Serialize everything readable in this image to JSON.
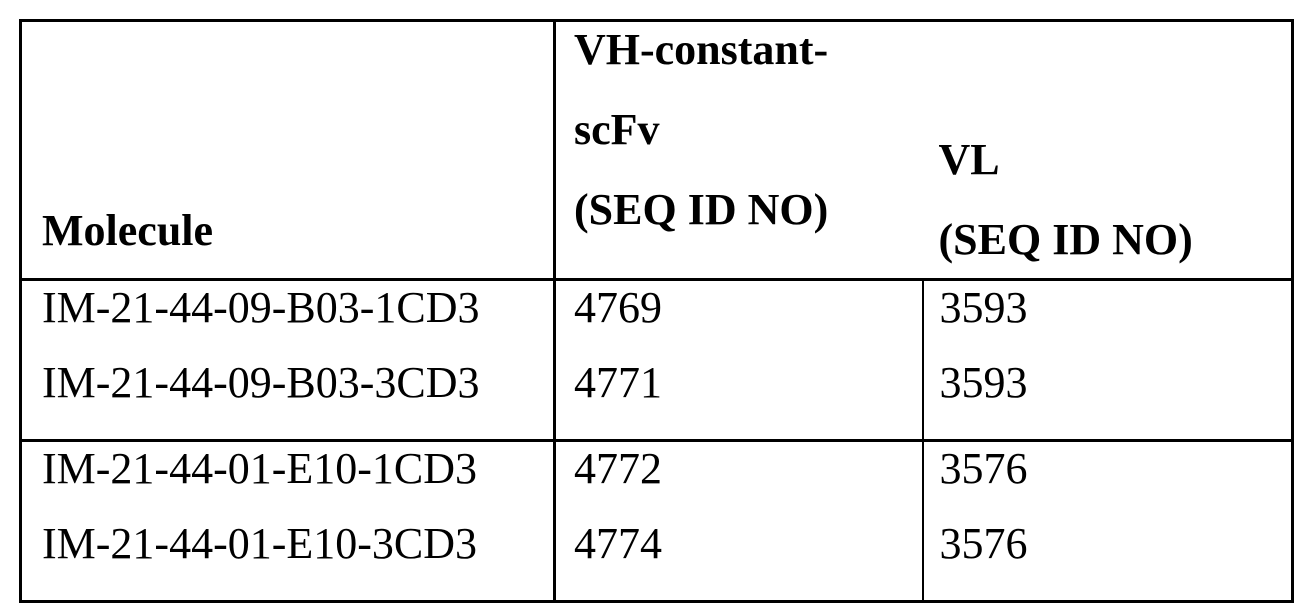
{
  "page": {
    "background": "#ffffff",
    "text_color": "#000000",
    "border_color": "#000000"
  },
  "table": {
    "header": {
      "molecule": "Molecule",
      "vh_lines": [
        "VH-constant-",
        "scFv",
        "(SEQ ID NO)"
      ],
      "vl_lines": [
        "VL",
        "(SEQ ID NO)"
      ]
    },
    "groups": [
      {
        "rows": [
          {
            "molecule": "IM-21-44-09-B03-1CD3",
            "vh_seq_id": "4769",
            "vl_seq_id": "3593"
          },
          {
            "molecule": "IM-21-44-09-B03-3CD3",
            "vh_seq_id": "4771",
            "vl_seq_id": "3593"
          }
        ]
      },
      {
        "rows": [
          {
            "molecule": "IM-21-44-01-E10-1CD3",
            "vh_seq_id": "4772",
            "vl_seq_id": "3576"
          },
          {
            "molecule": "IM-21-44-01-E10-3CD3",
            "vh_seq_id": "4774",
            "vl_seq_id": "3576"
          }
        ]
      }
    ]
  }
}
